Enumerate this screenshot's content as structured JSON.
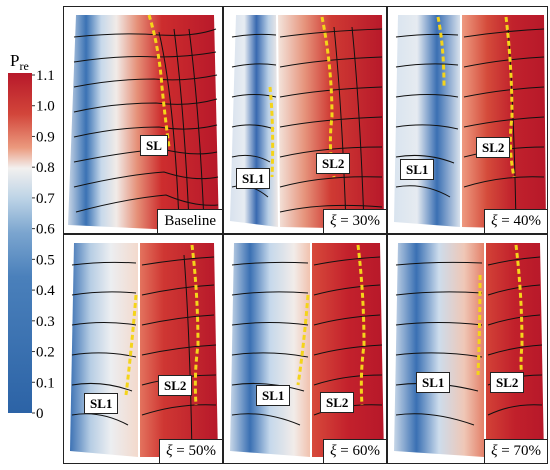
{
  "colorbar": {
    "label": "P",
    "label_sub": "re",
    "ticks": [
      "1.1",
      "1.0",
      "0.9",
      "0.8",
      "0.7",
      "0.6",
      "0.5",
      "0.4",
      "0.3",
      "0.2",
      "0.1",
      "0"
    ],
    "colors": {
      "low": "#2c63a6",
      "mid": "#f2f0ef",
      "high": "#b7192a"
    }
  },
  "panels": [
    {
      "caption_symbol": "",
      "caption_value": "Baseline",
      "labels": [
        "SL"
      ]
    },
    {
      "caption_symbol": "ξ",
      "caption_value": " = 30%",
      "labels": [
        "SL1",
        "SL2"
      ]
    },
    {
      "caption_symbol": "ξ",
      "caption_value": " = 40%",
      "labels": [
        "SL1",
        "SL2"
      ]
    },
    {
      "caption_symbol": "ξ",
      "caption_value": " = 50%",
      "labels": [
        "SL1",
        "SL2"
      ]
    },
    {
      "caption_symbol": "ξ",
      "caption_value": " = 60%",
      "labels": [
        "SL1",
        "SL2"
      ]
    },
    {
      "caption_symbol": "ξ",
      "caption_value": " = 70%",
      "labels": [
        "SL1",
        "SL2"
      ]
    }
  ]
}
